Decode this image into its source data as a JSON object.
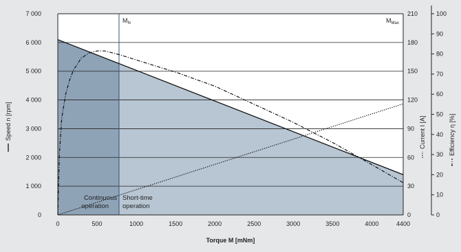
{
  "chart_data": {
    "type": "line",
    "xlabel": "Torque M [mNm]",
    "x_ticks": [
      0,
      500,
      1000,
      1500,
      2000,
      2500,
      3000,
      3500,
      4000,
      4400
    ],
    "xlim": [
      0,
      4400
    ],
    "ylabel_left": "Speed n [rpm]",
    "y_left_ticks": [
      "0",
      "1 000",
      "2 000",
      "3 000",
      "4 000",
      "5 000",
      "6 000",
      "7 000"
    ],
    "ylim_left": [
      0,
      7000
    ],
    "ylabel_right1": "Current I [A]",
    "y_right1_ticks": [
      "0",
      "30",
      "60",
      "90",
      "120",
      "150",
      "180",
      "210"
    ],
    "ylim_right1": [
      0,
      210
    ],
    "ylabel_right2": "Efficiency η [%]",
    "y_right2_ticks": [
      "0",
      "10",
      "20",
      "30",
      "40",
      "50",
      "60",
      "70",
      "80",
      "90",
      "100"
    ],
    "ylim_right2": [
      0,
      100
    ],
    "grid": true,
    "markers": {
      "nominal": {
        "label": "M",
        "sub": "N",
        "x": 780
      },
      "max": {
        "label": "M",
        "sub": "Max",
        "x": 4400
      }
    },
    "regions": {
      "continuous": {
        "lines": [
          "Continuous",
          "operation"
        ],
        "x_range": [
          0,
          780
        ],
        "color": "#8fa3b7"
      },
      "short_time": {
        "lines": [
          "Short-time",
          "operation"
        ],
        "x_range": [
          780,
          4400
        ],
        "color": "#b8c6d3"
      }
    },
    "series": [
      {
        "name": "Speed n [rpm]",
        "axis": "left",
        "style": "solid",
        "x": [
          0,
          4400
        ],
        "y": [
          6100,
          1400
        ]
      },
      {
        "name": "Current I [A]",
        "axis": "right1",
        "style": "dotted",
        "x": [
          0,
          4400
        ],
        "y": [
          0,
          116
        ]
      },
      {
        "name": "Efficiency η [%]",
        "axis": "right2",
        "style": "dashdot",
        "x": [
          0,
          20,
          50,
          100,
          150,
          200,
          300,
          400,
          500,
          600,
          800,
          1000,
          1500,
          2000,
          2500,
          3000,
          3500,
          4000,
          4400
        ],
        "y": [
          0,
          30,
          48,
          60,
          67,
          72,
          78,
          80.5,
          81.5,
          81.5,
          79.5,
          77,
          71,
          64,
          55,
          46,
          36,
          25,
          16
        ]
      }
    ]
  }
}
